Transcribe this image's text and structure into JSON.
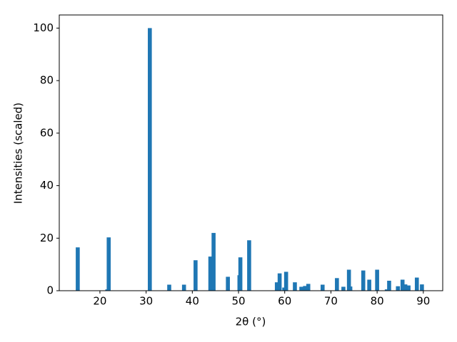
{
  "chart_data": {
    "type": "bar",
    "x_label": "2θ (°)",
    "y_label": "Intensities (scaled)",
    "x": [
      15.2,
      21.6,
      21.9,
      30.8,
      35.0,
      38.2,
      40.7,
      43.9,
      44.6,
      47.7,
      50.2,
      50.4,
      52.3,
      58.3,
      58.9,
      59.9,
      60.3,
      62.2,
      63.6,
      64.4,
      65.1,
      68.2,
      71.3,
      72.7,
      73.9,
      74.2,
      77.0,
      78.3,
      80.0,
      82.1,
      82.6,
      84.5,
      85.5,
      86.1,
      86.8,
      88.6,
      89.7
    ],
    "values": [
      16.5,
      0.5,
      20.3,
      100,
      2.3,
      2.3,
      11.6,
      13,
      22,
      5.3,
      5.9,
      12.7,
      19.2,
      3.2,
      6.6,
      1.2,
      7.2,
      3.2,
      1.5,
      1.8,
      2.6,
      2.3,
      4.8,
      1.5,
      8.0,
      1.6,
      7.7,
      4.2,
      8.0,
      0.5,
      3.8,
      1.7,
      4.2,
      2.4,
      2.0,
      5.0,
      2.4
    ],
    "color": "#1f77b4",
    "xlim": [
      11.2,
      94.2
    ],
    "xticks": [
      20,
      30,
      40,
      50,
      60,
      70,
      80,
      90
    ],
    "ylim": [
      0,
      105
    ],
    "yticks": [
      0,
      20,
      40,
      60,
      80,
      100
    ]
  }
}
